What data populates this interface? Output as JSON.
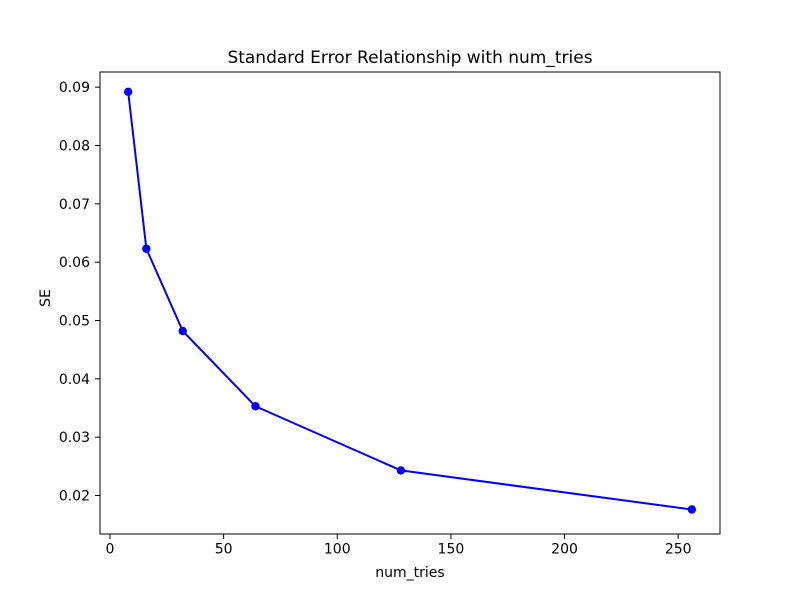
{
  "figure": {
    "background_color": "#ffffff",
    "spine_color": "#000000",
    "tick_color": "#000000",
    "text_color": "#000000"
  },
  "chart_data": {
    "type": "line",
    "title": "Standard Error Relationship with num_tries",
    "xlabel": "num_tries",
    "ylabel": "SE",
    "x": [
      8,
      16,
      32,
      64,
      128,
      256
    ],
    "y": [
      0.0892,
      0.0623,
      0.0482,
      0.0353,
      0.0243,
      0.0176
    ],
    "line_color": "#0000ff",
    "marker_color": "#0000ff",
    "marker_shape": "circle",
    "xlim": [
      -4.4,
      268.4
    ],
    "ylim": [
      0.0134,
      0.0926
    ],
    "x_ticks": [
      0,
      50,
      100,
      150,
      200,
      250
    ],
    "x_tick_labels": [
      "0",
      "50",
      "100",
      "150",
      "200",
      "250"
    ],
    "y_ticks": [
      0.02,
      0.03,
      0.04,
      0.05,
      0.06,
      0.07,
      0.08,
      0.09
    ],
    "y_tick_labels": [
      "0.02",
      "0.03",
      "0.04",
      "0.05",
      "0.06",
      "0.07",
      "0.08",
      "0.09"
    ],
    "grid": false
  }
}
